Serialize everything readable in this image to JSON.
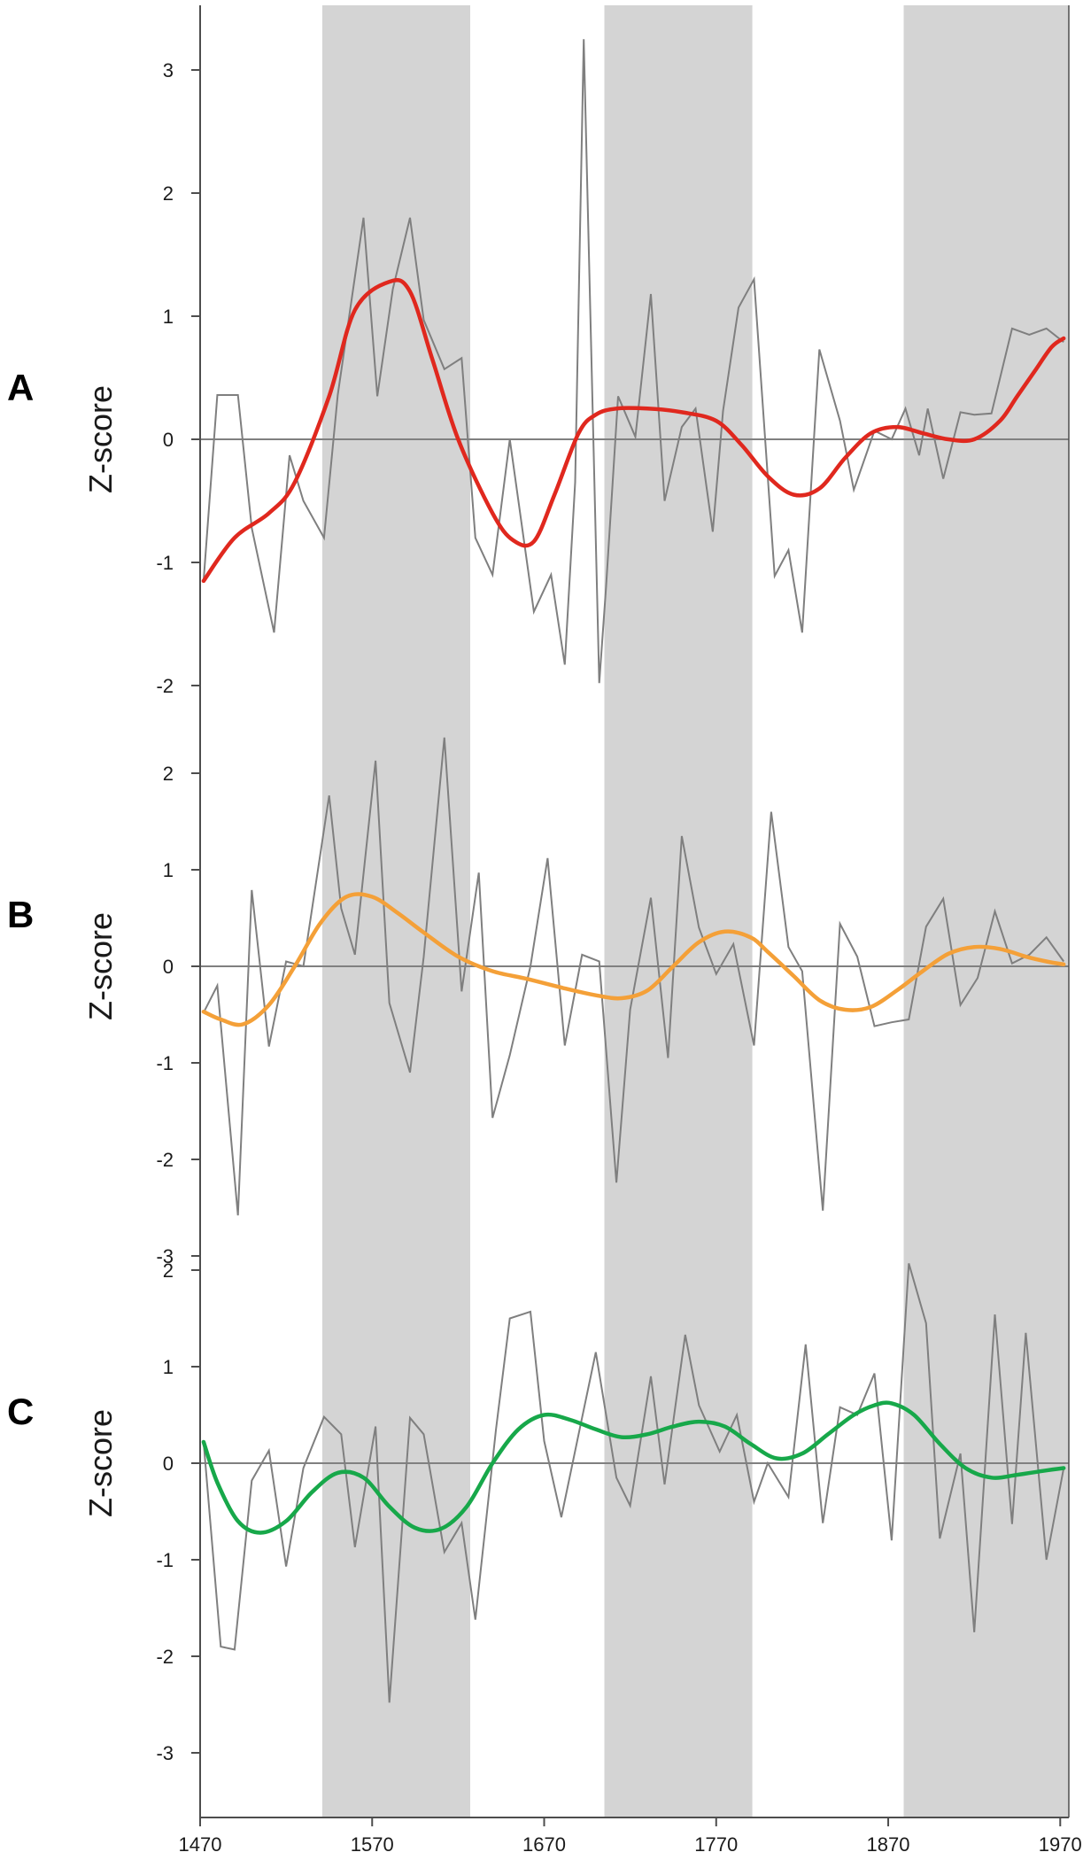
{
  "chart_data": [
    {
      "type": "line",
      "panel_label": "A",
      "ylabel": "Z-score",
      "ylim": [
        -2,
        3
      ],
      "yticks": [
        -2,
        -1,
        0,
        1,
        2,
        3
      ],
      "raw": {
        "x": [
          1472,
          1480,
          1492,
          1500,
          1513,
          1522,
          1530,
          1542,
          1550,
          1565,
          1573,
          1582,
          1592,
          1600,
          1612,
          1622,
          1630,
          1640,
          1650,
          1664,
          1674,
          1682,
          1688,
          1693,
          1702,
          1706,
          1713,
          1723,
          1732,
          1740,
          1750,
          1758,
          1768,
          1774,
          1783,
          1792,
          1804,
          1812,
          1820,
          1830,
          1842,
          1850,
          1862,
          1872,
          1880,
          1888,
          1893,
          1902,
          1912,
          1920,
          1930,
          1942,
          1952,
          1962,
          1972
        ],
        "y": [
          -1.15,
          0.36,
          0.36,
          -0.72,
          -1.57,
          -0.13,
          -0.5,
          -0.8,
          0.36,
          1.8,
          0.35,
          1.22,
          1.8,
          0.97,
          0.57,
          0.66,
          -0.8,
          -1.1,
          0.0,
          -1.4,
          -1.1,
          -1.83,
          -0.35,
          3.25,
          -1.98,
          -1.2,
          0.35,
          0.02,
          1.18,
          -0.5,
          0.1,
          0.25,
          -0.75,
          0.23,
          1.07,
          1.3,
          -1.11,
          -0.9,
          -1.57,
          0.73,
          0.15,
          -0.41,
          0.07,
          0.0,
          0.25,
          -0.13,
          0.25,
          -0.32,
          0.22,
          0.2,
          0.21,
          0.9,
          0.85,
          0.9,
          0.79
        ]
      },
      "smooth": {
        "color": "#e0281e",
        "x": [
          1472,
          1490,
          1510,
          1525,
          1545,
          1560,
          1580,
          1592,
          1605,
          1620,
          1640,
          1652,
          1664,
          1676,
          1690,
          1700,
          1712,
          1730,
          1750,
          1770,
          1785,
          1800,
          1815,
          1830,
          1845,
          1860,
          1875,
          1890,
          1905,
          1920,
          1935,
          1945,
          1955,
          1965,
          1972
        ],
        "y": [
          -1.15,
          -0.8,
          -0.6,
          -0.35,
          0.35,
          1.05,
          1.28,
          1.2,
          0.65,
          0.0,
          -0.6,
          -0.82,
          -0.83,
          -0.45,
          0.05,
          0.2,
          0.25,
          0.25,
          0.22,
          0.15,
          -0.05,
          -0.3,
          -0.45,
          -0.4,
          -0.15,
          0.05,
          0.1,
          0.05,
          0.0,
          0.0,
          0.15,
          0.35,
          0.55,
          0.75,
          0.82
        ]
      }
    },
    {
      "type": "line",
      "panel_label": "B",
      "ylabel": "Z-score",
      "ylim": [
        -3,
        2
      ],
      "yticks": [
        -3,
        -2,
        -1,
        0,
        1,
        2
      ],
      "raw": {
        "x": [
          1472,
          1480,
          1492,
          1500,
          1510,
          1520,
          1530,
          1545,
          1552,
          1560,
          1572,
          1580,
          1592,
          1600,
          1612,
          1622,
          1632,
          1640,
          1650,
          1662,
          1672,
          1682,
          1692,
          1702,
          1712,
          1720,
          1732,
          1742,
          1750,
          1760,
          1770,
          1780,
          1792,
          1802,
          1812,
          1820,
          1832,
          1842,
          1852,
          1862,
          1872,
          1882,
          1892,
          1902,
          1912,
          1922,
          1932,
          1942,
          1952,
          1962,
          1972
        ],
        "y": [
          -0.48,
          -0.2,
          -2.58,
          0.79,
          -0.83,
          0.05,
          0.0,
          1.77,
          0.6,
          0.12,
          2.13,
          -0.38,
          -1.1,
          0.1,
          2.37,
          -0.26,
          0.97,
          -1.57,
          -0.92,
          0.0,
          1.12,
          -0.82,
          0.12,
          0.05,
          -2.24,
          -0.45,
          0.71,
          -0.95,
          1.35,
          0.4,
          -0.08,
          0.23,
          -0.82,
          1.6,
          0.2,
          -0.05,
          -2.53,
          0.44,
          0.1,
          -0.62,
          -0.58,
          -0.55,
          0.41,
          0.7,
          -0.4,
          -0.12,
          0.57,
          0.03,
          0.12,
          0.3,
          0.05
        ]
      },
      "smooth": {
        "color": "#f4a038",
        "x": [
          1472,
          1482,
          1495,
          1510,
          1525,
          1540,
          1555,
          1570,
          1585,
          1600,
          1620,
          1640,
          1660,
          1680,
          1700,
          1715,
          1730,
          1745,
          1760,
          1775,
          1790,
          1800,
          1815,
          1830,
          1845,
          1860,
          1875,
          1890,
          1905,
          1920,
          1935,
          1950,
          1962,
          1972
        ],
        "y": [
          -0.47,
          -0.55,
          -0.6,
          -0.4,
          0.0,
          0.45,
          0.72,
          0.72,
          0.55,
          0.35,
          0.1,
          -0.05,
          -0.13,
          -0.22,
          -0.3,
          -0.33,
          -0.25,
          0.0,
          0.25,
          0.36,
          0.3,
          0.15,
          -0.1,
          -0.35,
          -0.45,
          -0.42,
          -0.25,
          -0.05,
          0.13,
          0.2,
          0.18,
          0.1,
          0.05,
          0.02
        ]
      }
    },
    {
      "type": "line",
      "panel_label": "C",
      "ylabel": "Z-score",
      "ylim": [
        -3,
        2
      ],
      "yticks": [
        -3,
        -2,
        -1,
        0,
        1,
        2
      ],
      "raw": {
        "x": [
          1472,
          1482,
          1490,
          1500,
          1510,
          1520,
          1530,
          1542,
          1552,
          1560,
          1572,
          1580,
          1592,
          1600,
          1612,
          1622,
          1630,
          1642,
          1650,
          1662,
          1670,
          1680,
          1690,
          1700,
          1712,
          1720,
          1732,
          1740,
          1752,
          1760,
          1772,
          1782,
          1792,
          1800,
          1812,
          1822,
          1832,
          1842,
          1852,
          1862,
          1872,
          1882,
          1892,
          1900,
          1912,
          1920,
          1932,
          1942,
          1950,
          1962,
          1972
        ],
        "y": [
          0.22,
          -1.9,
          -1.93,
          -0.18,
          0.13,
          -1.07,
          -0.05,
          0.48,
          0.3,
          -0.87,
          0.38,
          -2.48,
          0.47,
          0.3,
          -0.92,
          -0.62,
          -1.62,
          0.35,
          1.5,
          1.57,
          0.23,
          -0.56,
          0.3,
          1.15,
          -0.15,
          -0.44,
          0.9,
          -0.22,
          1.33,
          0.6,
          0.12,
          0.5,
          -0.4,
          0.0,
          -0.35,
          1.23,
          -0.62,
          0.58,
          0.5,
          0.93,
          -0.8,
          2.07,
          1.45,
          -0.78,
          0.1,
          -1.75,
          1.54,
          -0.63,
          1.35,
          -1.0,
          -0.05
        ]
      },
      "smooth": {
        "color": "#17a84a",
        "x": [
          1472,
          1480,
          1492,
          1505,
          1520,
          1535,
          1550,
          1565,
          1580,
          1595,
          1610,
          1625,
          1640,
          1655,
          1670,
          1685,
          1700,
          1715,
          1730,
          1745,
          1760,
          1775,
          1790,
          1805,
          1820,
          1835,
          1850,
          1862,
          1872,
          1885,
          1900,
          1915,
          1930,
          1945,
          1960,
          1972
        ],
        "y": [
          0.22,
          -0.2,
          -0.6,
          -0.72,
          -0.6,
          -0.3,
          -0.1,
          -0.15,
          -0.45,
          -0.67,
          -0.68,
          -0.45,
          0.0,
          0.35,
          0.5,
          0.45,
          0.35,
          0.27,
          0.3,
          0.38,
          0.43,
          0.38,
          0.2,
          0.05,
          0.1,
          0.3,
          0.5,
          0.6,
          0.62,
          0.5,
          0.2,
          -0.05,
          -0.15,
          -0.12,
          -0.08,
          -0.05
        ]
      }
    }
  ],
  "shared": {
    "xlim": [
      1470,
      1975
    ],
    "xticks": [
      1470,
      1570,
      1670,
      1770,
      1870,
      1970
    ],
    "shaded_periods": [
      [
        1541,
        1627
      ],
      [
        1705,
        1791
      ],
      [
        1879,
        1975
      ]
    ],
    "colors": {
      "raw_line": "#7f7f7f",
      "zero_line": "#808080",
      "shade": "#d4d4d4",
      "axis": "#4d4d4d"
    }
  }
}
